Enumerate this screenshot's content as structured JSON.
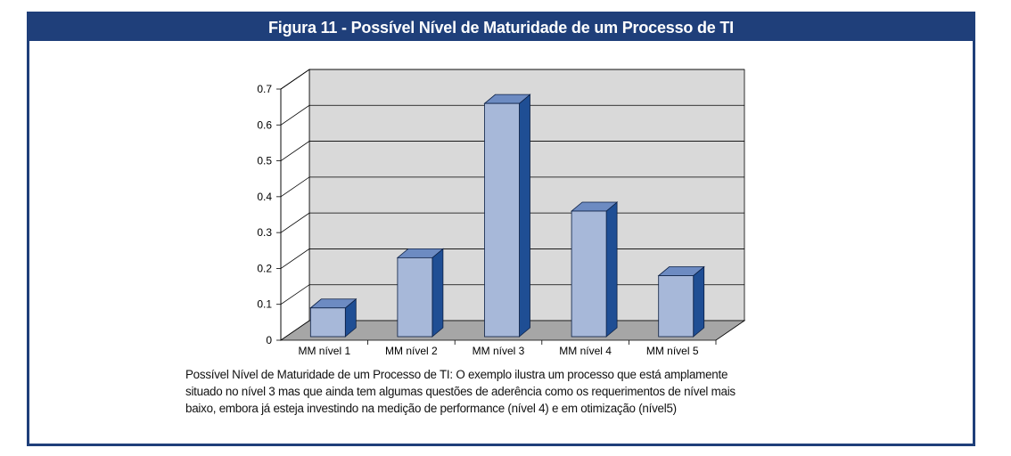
{
  "figure": {
    "title": "Figura 11 - Possível Nível de Maturidade de um Processo de TI",
    "caption": "Possível Nível de Maturidade de um Processo de TI: O exemplo ilustra um processo que está amplamente situado no nível 3 mas que ainda tem algumas questões de aderência como os requerimentos de nível mais baixo, embora já esteja investindo na medição de performance (nível 4) e em otimização (nível5)"
  },
  "colors": {
    "frame": "#1f3f7a",
    "bar_front": "#a7b8d9",
    "bar_side": "#1f4e94",
    "bar_top": "#6d8bc2",
    "plot_back": "#d9d9d9",
    "plot_floor": "#a6a6a6"
  },
  "chart_data": {
    "type": "bar",
    "style": "3d-column",
    "categories": [
      "MM nível 1",
      "MM nível 2",
      "MM nível 3",
      "MM nível 4",
      "MM nível 5"
    ],
    "values": [
      0.08,
      0.22,
      0.65,
      0.35,
      0.17
    ],
    "title": "",
    "xlabel": "",
    "ylabel": "",
    "ylim": [
      0,
      0.7
    ],
    "yticks": [
      0,
      0.1,
      0.2,
      0.3,
      0.4,
      0.5,
      0.6,
      0.7
    ],
    "ytick_labels": [
      "0",
      "0.1",
      "0.2",
      "0.3",
      "0.4",
      "0.5",
      "0.6",
      "0.7"
    ],
    "grid": true,
    "legend": "none"
  }
}
